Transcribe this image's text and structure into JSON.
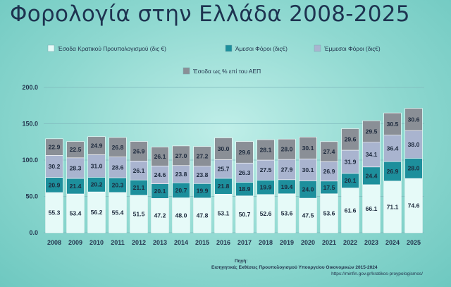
{
  "title": "Φορολογία στην Ελλάδα 2008-2025",
  "source": {
    "heading": "Πηγή:",
    "text": "Εισηγητικές Εκθέσεις Προυπολογισμού Υπουργείου Οικονομικών 2015-2024",
    "url": "https://minfin.gov.gr/kratikos-proypologismos/"
  },
  "chart_data": {
    "type": "bar",
    "stacked": true,
    "categories": [
      "2008",
      "2009",
      "2010",
      "2011",
      "2012",
      "2013",
      "2014",
      "2015",
      "2016",
      "2017",
      "2018",
      "2019",
      "2020",
      "2021",
      "2022",
      "2023",
      "2024",
      "2025"
    ],
    "series": [
      {
        "name": "Έσοδα Κρατικού Προυπολογισμού (δις €)",
        "color": "#e6faf8",
        "values": [
          55.3,
          53.4,
          56.2,
          55.4,
          51.5,
          47.2,
          48.0,
          47.8,
          53.1,
          50.7,
          52.6,
          53.6,
          47.5,
          53.6,
          61.6,
          66.1,
          71.1,
          74.6
        ]
      },
      {
        "name": "Άμεσοι Φόροι (δις€)",
        "color": "#1d8f9c",
        "values": [
          20.9,
          21.4,
          20.2,
          20.3,
          21.1,
          20.1,
          20.7,
          19.9,
          21.8,
          18.9,
          19.9,
          19.4,
          24.0,
          17.5,
          20.1,
          24.4,
          26.9,
          28.0
        ]
      },
      {
        "name": "Έμμεσοι Φόροι (δις€)",
        "color": "#a9b4cf",
        "values": [
          30.2,
          28.3,
          31.0,
          28.6,
          26.1,
          24.6,
          23.8,
          23.8,
          25.7,
          26.3,
          27.5,
          27.9,
          30.1,
          26.9,
          31.9,
          34.1,
          36.4,
          38.0
        ]
      },
      {
        "name": "Έσοδα ως % επί του ΑΕΠ",
        "color": "#8a8f96",
        "values": [
          22.9,
          22.5,
          24.9,
          26.8,
          26.9,
          26.1,
          27.0,
          27.2,
          30.0,
          29.6,
          28.1,
          28.0,
          30.1,
          27.4,
          29.6,
          29.5,
          30.5,
          30.6
        ]
      }
    ],
    "yticks": [
      "0.0",
      "50.0",
      "100.0",
      "150.0",
      "200.0"
    ],
    "ylim": [
      0,
      200
    ],
    "grid": true,
    "legend": "top"
  }
}
